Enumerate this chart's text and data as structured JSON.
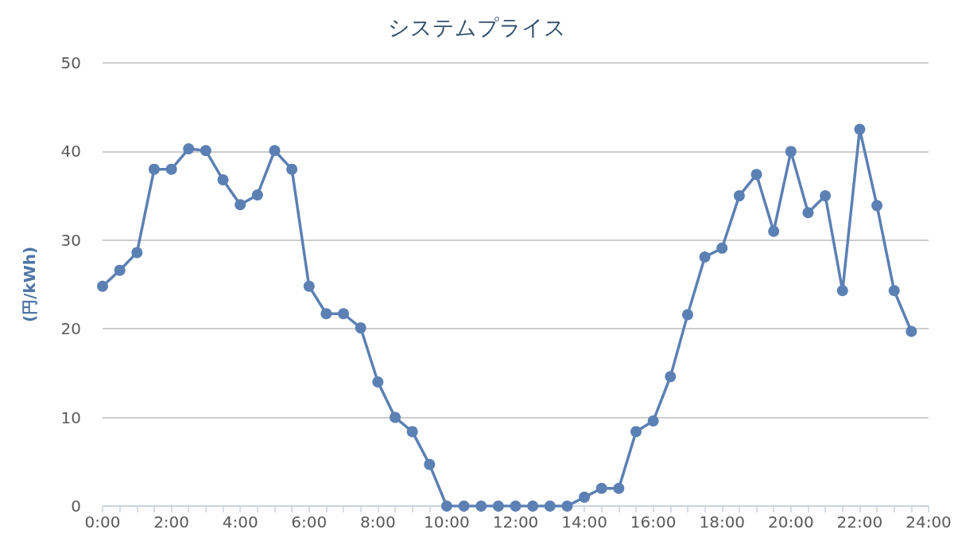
{
  "chart_data": {
    "type": "line",
    "title": "システムプライス",
    "ylabel": "(円/kWh)",
    "x": [
      0,
      0.5,
      1,
      1.5,
      2,
      2.5,
      3,
      3.5,
      4,
      4.5,
      5,
      5.5,
      6,
      6.5,
      7,
      7.5,
      8,
      8.5,
      9,
      9.5,
      10,
      10.5,
      11,
      11.5,
      12,
      12.5,
      13,
      13.5,
      14,
      14.5,
      15,
      15.5,
      16,
      16.5,
      17,
      17.5,
      18,
      18.5,
      19,
      19.5,
      20,
      20.5,
      21,
      21.5,
      22,
      22.5,
      23,
      23.5
    ],
    "series": [
      {
        "color": "#5b80b4",
        "values": [
          24.8,
          26.6,
          28.6,
          38.0,
          38.0,
          40.3,
          40.1,
          36.8,
          34.0,
          35.1,
          40.1,
          38.0,
          24.8,
          21.7,
          21.7,
          20.1,
          14.0,
          10.0,
          8.4,
          4.7,
          0,
          0,
          0,
          0,
          0,
          0,
          0,
          0,
          1.0,
          2.0,
          2.0,
          8.4,
          9.6,
          14.6,
          21.6,
          28.1,
          29.1,
          35.0,
          37.4,
          31.0,
          40.0,
          33.1,
          35.0,
          24.3,
          42.5,
          33.9,
          24.3,
          19.7
        ]
      }
    ],
    "xlim": [
      0,
      24
    ],
    "xticks": [
      {
        "value": 0,
        "label": "0:00"
      },
      {
        "value": 0.5,
        "label": null
      },
      {
        "value": 1,
        "label": null
      },
      {
        "value": 1.5,
        "label": null
      },
      {
        "value": 2,
        "label": "2:00"
      },
      {
        "value": 2.5,
        "label": null
      },
      {
        "value": 3,
        "label": null
      },
      {
        "value": 3.5,
        "label": null
      },
      {
        "value": 4,
        "label": "4:00"
      },
      {
        "value": 4.5,
        "label": null
      },
      {
        "value": 5,
        "label": null
      },
      {
        "value": 5.5,
        "label": null
      },
      {
        "value": 6,
        "label": "6:00"
      },
      {
        "value": 6.5,
        "label": null
      },
      {
        "value": 7,
        "label": null
      },
      {
        "value": 7.5,
        "label": null
      },
      {
        "value": 8,
        "label": "8:00"
      },
      {
        "value": 8.5,
        "label": null
      },
      {
        "value": 9,
        "label": null
      },
      {
        "value": 9.5,
        "label": null
      },
      {
        "value": 10,
        "label": "10:00"
      },
      {
        "value": 10.5,
        "label": null
      },
      {
        "value": 11,
        "label": null
      },
      {
        "value": 11.5,
        "label": null
      },
      {
        "value": 12,
        "label": "12:00"
      },
      {
        "value": 12.5,
        "label": null
      },
      {
        "value": 13,
        "label": null
      },
      {
        "value": 13.5,
        "label": null
      },
      {
        "value": 14,
        "label": "14:00"
      },
      {
        "value": 14.5,
        "label": null
      },
      {
        "value": 15,
        "label": null
      },
      {
        "value": 15.5,
        "label": null
      },
      {
        "value": 16,
        "label": "16:00"
      },
      {
        "value": 16.5,
        "label": null
      },
      {
        "value": 17,
        "label": null
      },
      {
        "value": 17.5,
        "label": null
      },
      {
        "value": 18,
        "label": "18:00"
      },
      {
        "value": 18.5,
        "label": null
      },
      {
        "value": 19,
        "label": null
      },
      {
        "value": 19.5,
        "label": null
      },
      {
        "value": 20,
        "label": "20:00"
      },
      {
        "value": 20.5,
        "label": null
      },
      {
        "value": 21,
        "label": null
      },
      {
        "value": 21.5,
        "label": null
      },
      {
        "value": 22,
        "label": "22:00"
      },
      {
        "value": 22.5,
        "label": null
      },
      {
        "value": 23,
        "label": null
      },
      {
        "value": 23.5,
        "label": null
      },
      {
        "value": 24,
        "label": "24:00"
      }
    ],
    "ylim": [
      0,
      50
    ],
    "yticks": [
      0,
      10,
      20,
      30,
      40,
      50
    ],
    "grid": "y",
    "marker": "circle",
    "line_style": "solid"
  }
}
